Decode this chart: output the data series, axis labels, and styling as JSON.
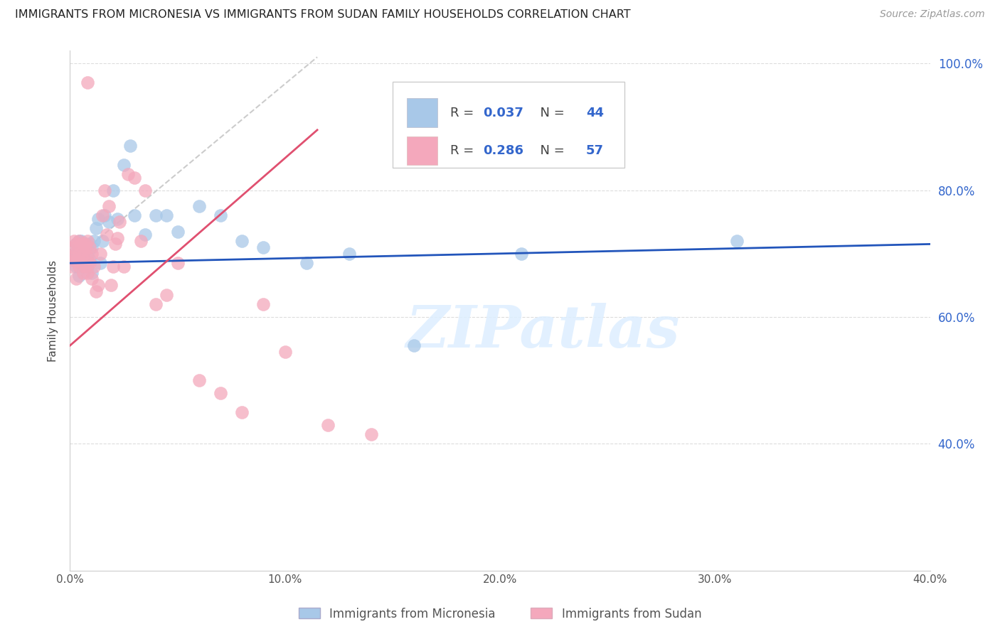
{
  "title": "IMMIGRANTS FROM MICRONESIA VS IMMIGRANTS FROM SUDAN FAMILY HOUSEHOLDS CORRELATION CHART",
  "source": "Source: ZipAtlas.com",
  "ylabel": "Family Households",
  "x_min": 0.0,
  "x_max": 0.4,
  "y_min": 0.2,
  "y_max": 1.02,
  "y_ticks": [
    0.4,
    0.6,
    0.8,
    1.0
  ],
  "x_ticks": [
    0.0,
    0.1,
    0.2,
    0.3,
    0.4
  ],
  "micronesia_R": 0.037,
  "micronesia_N": 44,
  "sudan_R": 0.286,
  "sudan_N": 57,
  "micronesia_color": "#a8c8e8",
  "sudan_color": "#f4a8bc",
  "micronesia_line_color": "#2255bb",
  "sudan_line_color": "#e05070",
  "micronesia_x": [
    0.001,
    0.002,
    0.002,
    0.003,
    0.003,
    0.004,
    0.004,
    0.005,
    0.005,
    0.006,
    0.006,
    0.007,
    0.007,
    0.008,
    0.008,
    0.009,
    0.009,
    0.01,
    0.01,
    0.011,
    0.012,
    0.013,
    0.014,
    0.015,
    0.016,
    0.018,
    0.02,
    0.022,
    0.025,
    0.028,
    0.03,
    0.035,
    0.04,
    0.045,
    0.05,
    0.06,
    0.07,
    0.08,
    0.09,
    0.11,
    0.13,
    0.16,
    0.21,
    0.31
  ],
  "micronesia_y": [
    0.695,
    0.7,
    0.69,
    0.715,
    0.68,
    0.72,
    0.665,
    0.695,
    0.72,
    0.68,
    0.71,
    0.685,
    0.715,
    0.68,
    0.7,
    0.715,
    0.69,
    0.71,
    0.67,
    0.72,
    0.74,
    0.755,
    0.685,
    0.72,
    0.76,
    0.75,
    0.8,
    0.755,
    0.84,
    0.87,
    0.76,
    0.73,
    0.76,
    0.76,
    0.735,
    0.775,
    0.76,
    0.72,
    0.71,
    0.685,
    0.7,
    0.555,
    0.7,
    0.72
  ],
  "sudan_x": [
    0.001,
    0.001,
    0.001,
    0.002,
    0.002,
    0.002,
    0.003,
    0.003,
    0.003,
    0.004,
    0.004,
    0.004,
    0.005,
    0.005,
    0.005,
    0.006,
    0.006,
    0.006,
    0.007,
    0.007,
    0.007,
    0.008,
    0.008,
    0.008,
    0.009,
    0.009,
    0.01,
    0.01,
    0.011,
    0.012,
    0.013,
    0.014,
    0.015,
    0.016,
    0.017,
    0.018,
    0.019,
    0.02,
    0.021,
    0.022,
    0.023,
    0.025,
    0.027,
    0.03,
    0.033,
    0.035,
    0.04,
    0.045,
    0.05,
    0.06,
    0.07,
    0.08,
    0.09,
    0.1,
    0.12,
    0.14,
    0.008
  ],
  "sudan_y": [
    0.695,
    0.71,
    0.68,
    0.72,
    0.7,
    0.69,
    0.715,
    0.66,
    0.69,
    0.7,
    0.68,
    0.72,
    0.685,
    0.715,
    0.695,
    0.7,
    0.715,
    0.67,
    0.71,
    0.68,
    0.715,
    0.695,
    0.67,
    0.72,
    0.685,
    0.71,
    0.7,
    0.66,
    0.68,
    0.64,
    0.65,
    0.7,
    0.76,
    0.8,
    0.73,
    0.775,
    0.65,
    0.68,
    0.715,
    0.725,
    0.75,
    0.68,
    0.825,
    0.82,
    0.72,
    0.8,
    0.62,
    0.635,
    0.685,
    0.5,
    0.48,
    0.45,
    0.62,
    0.545,
    0.43,
    0.415,
    0.97
  ],
  "blue_line_x": [
    0.0,
    0.4
  ],
  "blue_line_y": [
    0.685,
    0.715
  ],
  "pink_line_x": [
    0.0,
    0.115
  ],
  "pink_line_y": [
    0.555,
    0.895
  ],
  "dash_line_x": [
    0.005,
    0.115
  ],
  "dash_line_y": [
    0.7,
    1.01
  ],
  "watermark_text": "ZIPatlas"
}
